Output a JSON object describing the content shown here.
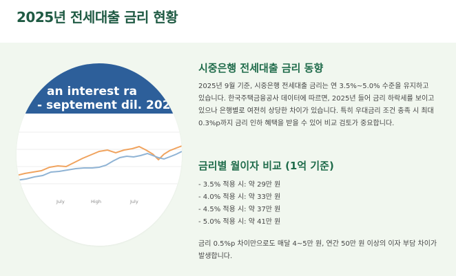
{
  "page": {
    "title": "2025년 전세대출 금리 현황"
  },
  "image": {
    "banner_line1": "an interest ra",
    "banner_line2": "- septement dil. 202",
    "x_labels": [
      "July",
      "High",
      "July"
    ]
  },
  "section1": {
    "heading": "시중은행 전세대출 금리 동향",
    "body": "2025년 9월 기준, 시중은행 전세대출 금리는 연 3.5%~5.0% 수준을 유지하고 있습니다. 한국주택금융공사 데이터에 따르면, 2025년 들어 금리 하락세를 보이고 있으나 은행별로 여전히 상당한 차이가 있습니다. 특히 우대금리 조건 충족 시 최대 0.3%p까지 금리 인하 혜택을 받을 수 있어 비교 검토가 중요합니다."
  },
  "section2": {
    "heading": "금리별 월이자 비교 (1억 기준)",
    "items": [
      "- 3.5% 적용 시: 약 29만 원",
      "- 4.0% 적용 시: 약 33만 원",
      "- 4.5% 적용 시: 약 37만 원",
      "- 5.0% 적용 시: 약 41만 원"
    ],
    "note": "금리 0.5%p 차이만으로도 매달 4~5만 원, 연간 50만 원 이상의 이자 부담 차이가 발생합니다."
  },
  "colors": {
    "title": "#1f5a43",
    "heading": "#1f6b4a",
    "panel": "#f1f7ef",
    "banner": "#2d5f9a",
    "orange_line": "#f0a35e",
    "blue_line": "#8fb3d4"
  }
}
